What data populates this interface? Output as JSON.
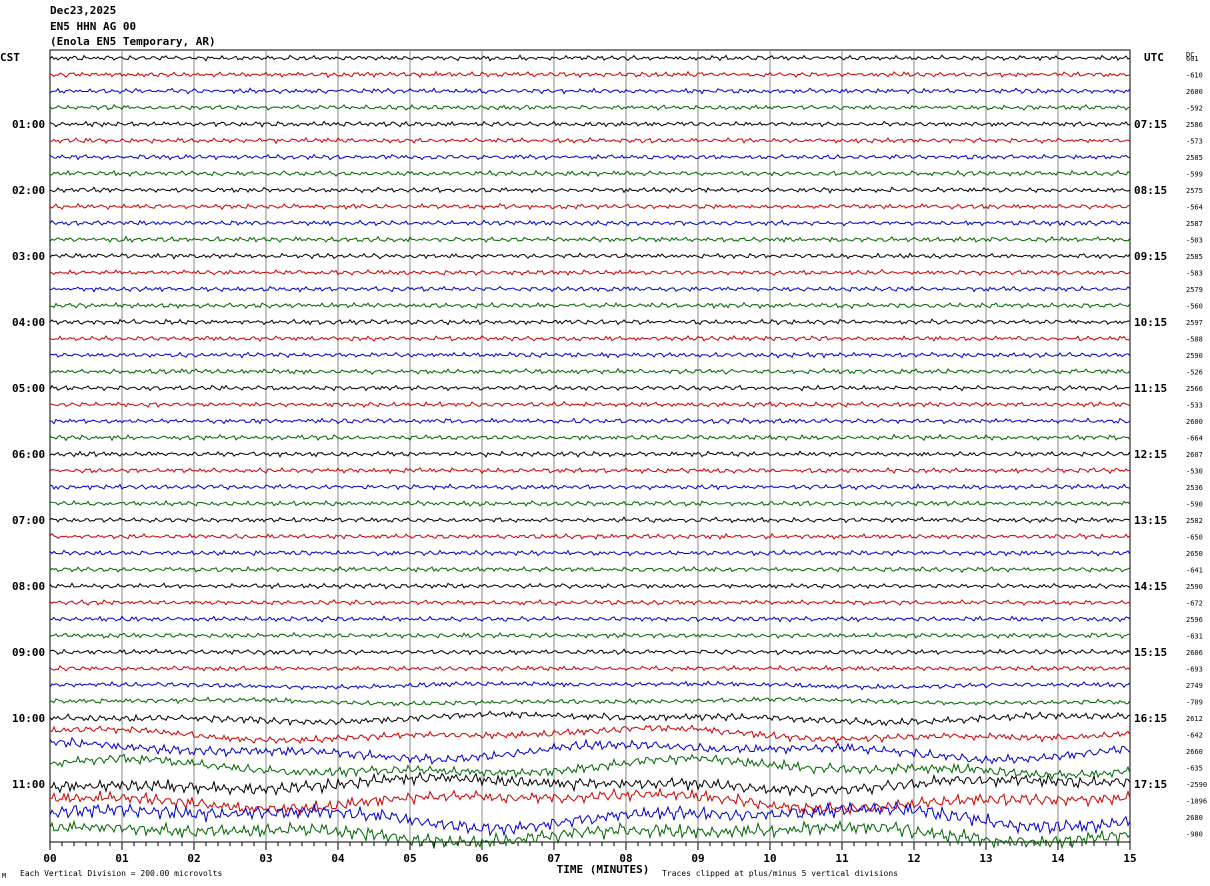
{
  "header": {
    "date": "Dec23,2025",
    "station": "EN5 HHN AG 00",
    "location": "(Enola EN5 Temporary, AR)"
  },
  "left_axis_title": "CST",
  "right_axis_title": "UTC",
  "dc_title": "DC",
  "footer": {
    "scale_note": "Each Vertical Division =  200.00 microvolts",
    "clip_note": "Traces clipped at plus/minus 5 vertical divisions",
    "corner_mark": "M"
  },
  "trace_colors": [
    "#000000",
    "#cc0000",
    "#0000cc",
    "#006600"
  ],
  "chart_data": {
    "type": "line",
    "title": "EN5 HHN AG 00",
    "xlabel": "TIME (MINUTES)",
    "xlim": [
      0,
      15
    ],
    "x_ticks": [
      "00",
      "01",
      "02",
      "03",
      "04",
      "05",
      "06",
      "07",
      "08",
      "09",
      "10",
      "11",
      "12",
      "13",
      "14",
      "15"
    ],
    "traces_per_hour": 4,
    "trace_count": 48,
    "left_hour_labels": [
      "01:00",
      "02:00",
      "03:00",
      "04:00",
      "05:00",
      "06:00",
      "07:00",
      "08:00",
      "09:00",
      "10:00",
      "11:00"
    ],
    "right_hour_labels": [
      "07:15",
      "08:15",
      "09:15",
      "10:15",
      "11:15",
      "12:15",
      "13:15",
      "14:15",
      "15:15",
      "16:15",
      "17:15"
    ],
    "dc_offsets": [
      "601",
      "-610",
      "2600",
      "-592",
      "2586",
      "-573",
      "2585",
      "-599",
      "2575",
      "-564",
      "2587",
      "-503",
      "2585",
      "-583",
      "2579",
      "-560",
      "2597",
      "-588",
      "2590",
      "-526",
      "2566",
      "-533",
      "2600",
      "-664",
      "2607",
      "-530",
      "2536",
      "-590",
      "2582",
      "-650",
      "2650",
      "-641",
      "2590",
      "-672",
      "2596",
      "-631",
      "2606",
      "-693",
      "2749",
      "-709",
      "2612",
      "-642",
      "2660",
      "-635",
      "-2590",
      "-1096",
      "2680",
      "-980"
    ],
    "amplitude_profile": [
      2,
      2,
      2,
      2,
      2,
      2,
      2,
      2,
      2,
      2,
      2,
      2,
      2,
      2,
      2,
      2,
      2,
      2,
      2,
      2,
      2,
      2,
      2,
      2,
      2,
      2,
      2,
      2,
      2,
      2,
      2,
      2,
      2,
      2,
      2,
      2,
      2,
      2,
      2,
      2,
      3,
      3,
      4,
      4,
      5,
      5,
      6,
      6
    ],
    "long_period_profile": [
      0,
      0,
      0,
      0,
      0,
      0,
      0,
      0,
      0,
      0,
      0,
      0,
      0,
      0,
      0,
      0,
      0,
      0,
      0,
      0,
      0,
      0,
      0,
      0,
      0,
      0,
      0,
      0,
      0,
      0,
      0,
      0,
      0,
      0,
      0,
      0,
      0,
      0,
      1,
      1,
      2,
      3,
      4,
      4,
      3,
      4,
      5,
      4
    ]
  }
}
